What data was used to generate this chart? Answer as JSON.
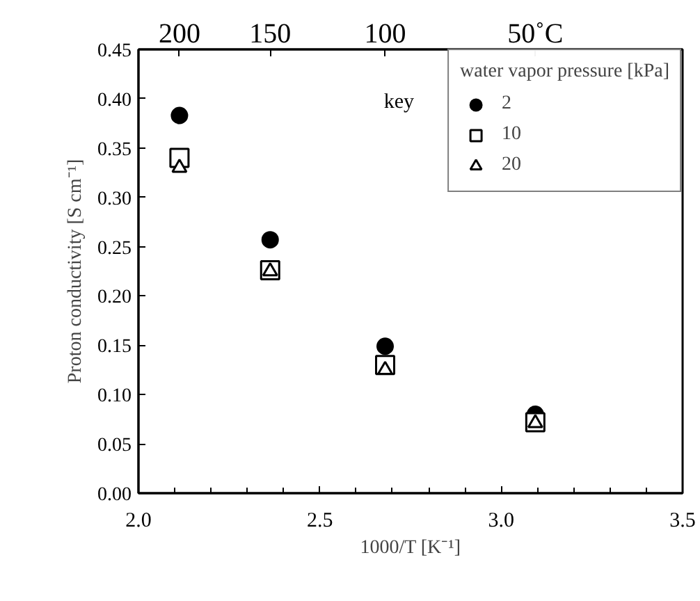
{
  "chart_data": {
    "type": "scatter",
    "xlabel": "1000/T [K⁻¹]",
    "ylabel": "Proton conductivity [S cm⁻¹]",
    "legend_title": "water vapor pressure [kPa]",
    "annotations": [
      "key",
      "200",
      "150",
      "100",
      "50˚C"
    ],
    "x": [
      2.113,
      2.363,
      2.68,
      3.094
    ],
    "series": [
      {
        "name": "2",
        "color": "#000000",
        "marker": "circle",
        "values": [
          0.383,
          0.257,
          0.149,
          0.08
        ]
      },
      {
        "name": "10",
        "color": "#000000",
        "marker": "square",
        "values": [
          0.34,
          0.226,
          0.13,
          0.072
        ]
      },
      {
        "name": "20",
        "color": "#000000",
        "marker": "triangle",
        "values": [
          0.33,
          0.225,
          0.125,
          0.071
        ]
      }
    ],
    "xlim": [
      2.0,
      3.5
    ],
    "xticks": [
      {
        "value": 2.0,
        "label": "2.0"
      },
      {
        "value": 2.5,
        "label": "2.5"
      },
      {
        "value": 3.0,
        "label": "3.0"
      },
      {
        "value": 3.5,
        "label": "3.5"
      }
    ],
    "ylim": [
      0,
      0.45
    ],
    "yticks": [
      {
        "value": 0,
        "label": "0.00"
      },
      {
        "value": 0.05,
        "label": "0.05"
      },
      {
        "value": 0.1,
        "label": "0.10"
      },
      {
        "value": 0.15,
        "label": "0.15"
      },
      {
        "value": 0.2,
        "label": "0.20"
      },
      {
        "value": 0.25,
        "label": "0.25"
      },
      {
        "value": 0.3,
        "label": "0.30"
      },
      {
        "value": 0.35,
        "label": "0.35"
      },
      {
        "value": 0.4,
        "label": "0.40"
      },
      {
        "value": 0.45,
        "label": "0.45"
      }
    ],
    "grid": false,
    "legend": "top right"
  }
}
